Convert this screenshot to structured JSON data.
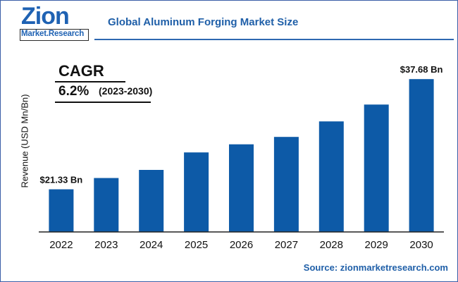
{
  "brand": {
    "logo_word": "Zion",
    "logo_sub": "Market.Research",
    "logo_color": "#1f62b3"
  },
  "title": "Global Aluminum Forging Market Size",
  "cagr": {
    "label": "CAGR",
    "value": "6.2%",
    "period": "(2023-2030)"
  },
  "source": "Source: zionmarketresearch.com",
  "chart_data": {
    "type": "bar",
    "title": "Global Aluminum Forging Market Size",
    "ylabel": "Revenue (USD Mn/Bn)",
    "xlabel": "",
    "categories": [
      "2022",
      "2023",
      "2024",
      "2025",
      "2026",
      "2027",
      "2028",
      "2029",
      "2030"
    ],
    "values": [
      21.33,
      23.0,
      24.2,
      26.8,
      28.0,
      29.1,
      31.4,
      33.9,
      37.68
    ],
    "ylim": [
      15,
      40
    ],
    "data_labels": [
      {
        "index": 0,
        "text": "$21.33 Bn"
      },
      {
        "index": 8,
        "text": "$37.68 Bn"
      }
    ],
    "grid": false,
    "bar_color": "#0d5aa7",
    "axis_color": "#222222"
  }
}
